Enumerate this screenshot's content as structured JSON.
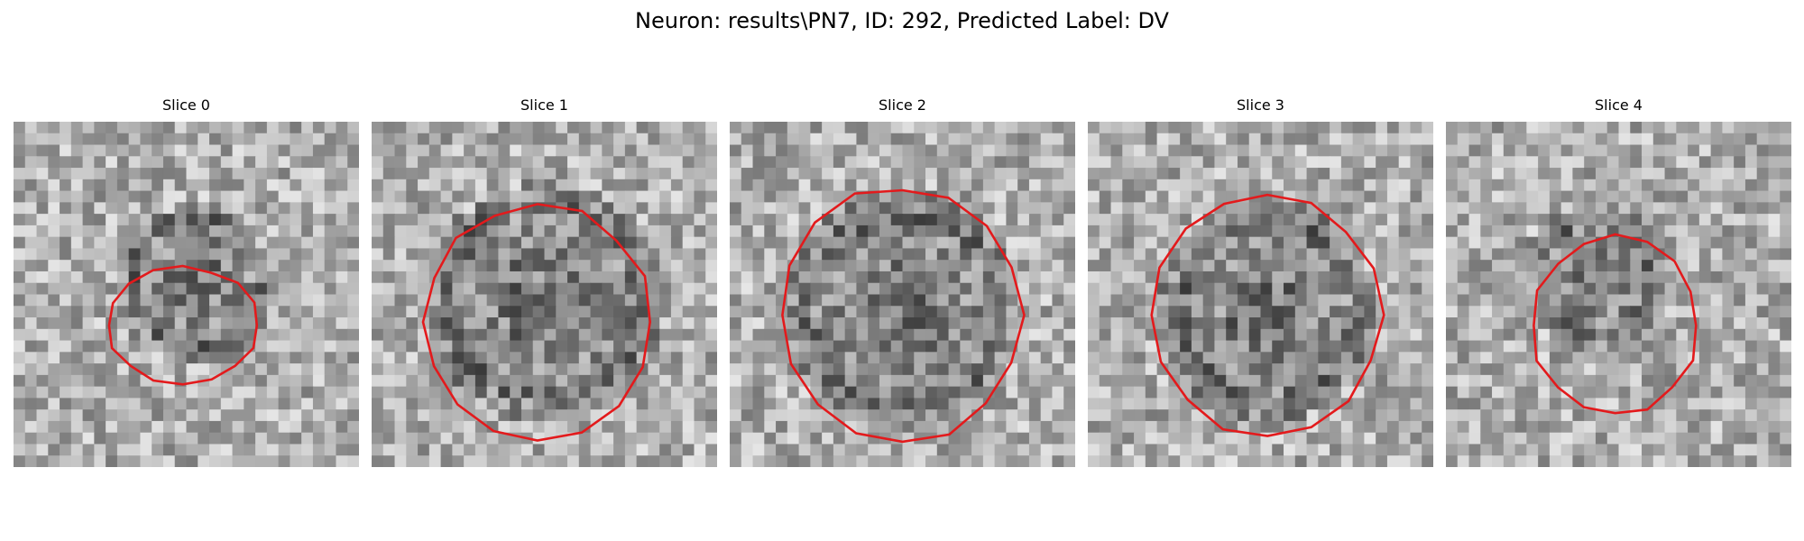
{
  "figure": {
    "title": "Neuron: results\\PN7, ID: 292, Predicted Label: DV"
  },
  "slices": [
    {
      "label": "Slice 0",
      "seed": 17,
      "dark_blob": [
        0.52,
        0.47,
        0.2
      ],
      "outline_color": "#e31a1c"
    },
    {
      "label": "Slice 1",
      "seed": 53,
      "dark_blob": [
        0.5,
        0.52,
        0.3
      ],
      "outline_color": "#e31a1c"
    },
    {
      "label": "Slice 2",
      "seed": 91,
      "dark_blob": [
        0.5,
        0.55,
        0.3
      ],
      "outline_color": "#e31a1c"
    },
    {
      "label": "Slice 3",
      "seed": 137,
      "dark_blob": [
        0.52,
        0.55,
        0.28
      ],
      "outline_color": "#e31a1c"
    },
    {
      "label": "Slice 4",
      "seed": 211,
      "dark_blob": [
        0.43,
        0.45,
        0.18
      ],
      "outline_color": "#e31a1c"
    }
  ],
  "colors": {
    "outline": "#e31a1c",
    "background": "#ffffff"
  }
}
